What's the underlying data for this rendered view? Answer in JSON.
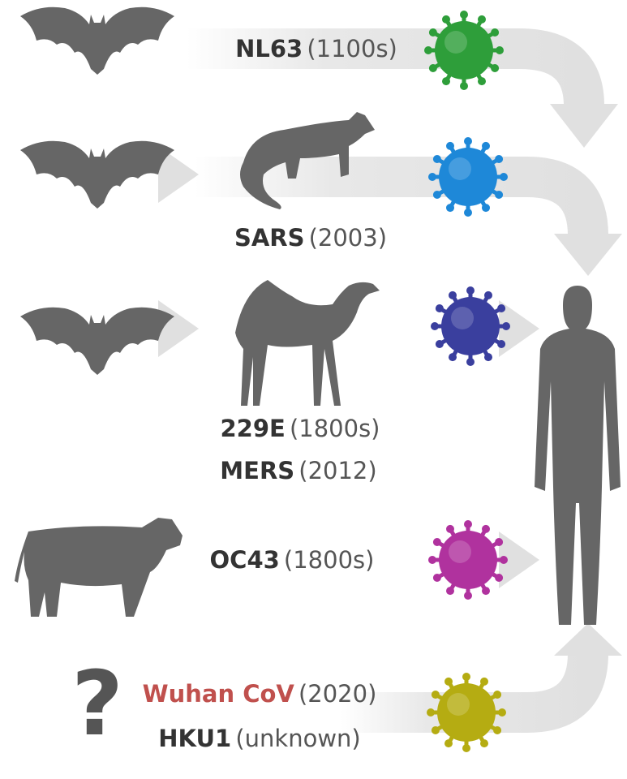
{
  "rows": [
    {
      "viruses": [
        {
          "name": "NL63",
          "date": "(1100s)"
        }
      ]
    },
    {
      "viruses": [
        {
          "name": "SARS",
          "date": "(2003)"
        }
      ]
    },
    {
      "viruses": [
        {
          "name": "229E",
          "date": "(1800s)"
        },
        {
          "name": "MERS",
          "date": "(2012)"
        }
      ]
    },
    {
      "viruses": [
        {
          "name": "OC43",
          "date": "(1800s)"
        }
      ]
    },
    {
      "source": "?",
      "viruses": [
        {
          "name": "Wuhan CoV",
          "date": "(2020)"
        },
        {
          "name": "HKU1",
          "date": "(unknown)"
        }
      ]
    }
  ]
}
